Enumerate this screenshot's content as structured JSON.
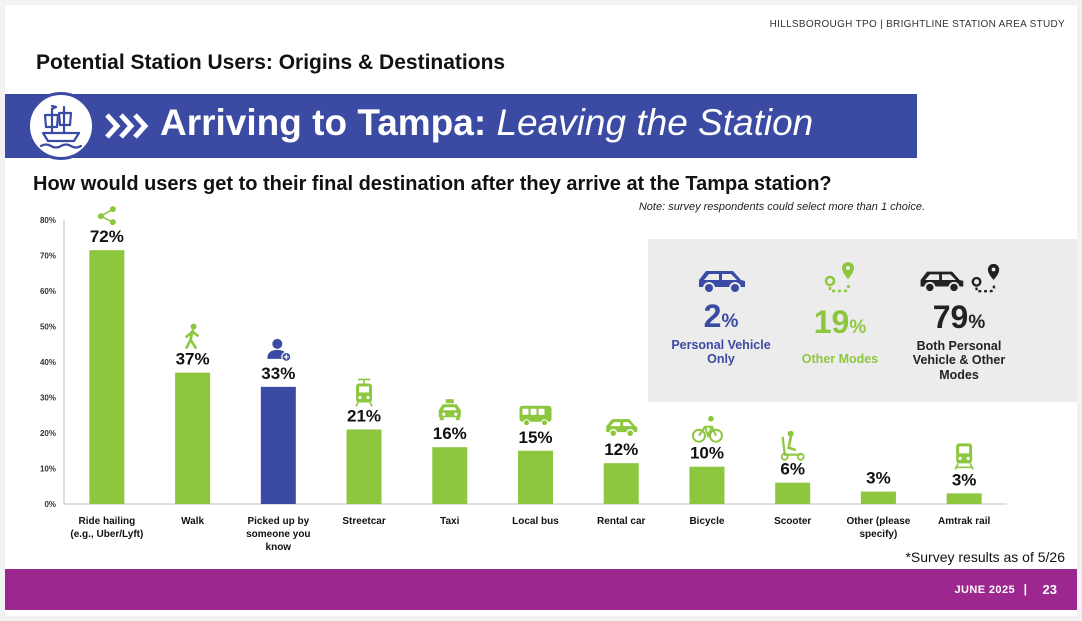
{
  "header": {
    "org": "HILLSBOROUGH TPO | BRIGHTLINE STATION AREA STUDY"
  },
  "subtitle": "Potential Station Users: Origins & Destinations",
  "banner": {
    "title_bold": "Arriving to Tampa:",
    "title_italic": "Leaving the Station"
  },
  "question": "How would users get to their final destination after they arrive at the Tampa station?",
  "note": "Note: survey respondents could select more than 1 choice.",
  "summary": [
    {
      "pct": "2",
      "sign": "%",
      "label": "Personal Vehicle Only",
      "color": "#3b4aa3",
      "icon": "car-icon"
    },
    {
      "pct": "19",
      "sign": "%",
      "label": "Other Modes",
      "color": "#8dc63f",
      "icon": "route-icon"
    },
    {
      "pct": "79",
      "sign": "%",
      "label": "Both Personal Vehicle & Other Modes",
      "color": "#222222",
      "icon": "car-and-route-icon"
    }
  ],
  "chart_data": {
    "type": "bar",
    "title": "How would users get to their final destination after they arrive at the Tampa station?",
    "xlabel": "",
    "ylabel": "",
    "ylim": [
      0,
      80
    ],
    "yticks": [
      "0%",
      "10%",
      "20%",
      "30%",
      "40%",
      "50%",
      "60%",
      "70%",
      "80%"
    ],
    "categories": [
      [
        "Ride hailing",
        "(e.g., Uber/Lyft)"
      ],
      [
        "Walk"
      ],
      [
        "Picked up by",
        "someone you",
        "know"
      ],
      [
        "Streetcar"
      ],
      [
        "Taxi"
      ],
      [
        "Local bus"
      ],
      [
        "Rental car"
      ],
      [
        "Bicycle"
      ],
      [
        "Scooter"
      ],
      [
        "Other (please",
        "specify)"
      ],
      [
        "Amtrak rail"
      ]
    ],
    "values": [
      71.5,
      37,
      33,
      21,
      16,
      15,
      11.5,
      10.5,
      6,
      3.5,
      3
    ],
    "labels": [
      "72%",
      "37%",
      "33%",
      "21%",
      "16%",
      "15%",
      "12%",
      "10%",
      "6%",
      "3%",
      "3%"
    ],
    "icons": [
      "share-icon",
      "walk-icon",
      "person-add-icon",
      "streetcar-icon",
      "taxi-icon",
      "bus-icon",
      "car-icon",
      "bicycle-icon",
      "scooter-icon",
      "",
      "train-icon"
    ],
    "colors": [
      "#8dc63f",
      "#8dc63f",
      "#3b4aa3",
      "#8dc63f",
      "#8dc63f",
      "#8dc63f",
      "#8dc63f",
      "#8dc63f",
      "#8dc63f",
      "#8dc63f",
      "#8dc63f"
    ]
  },
  "footnote": "*Survey results as of 5/26",
  "footer": {
    "date": "JUNE 2025",
    "separator": "|",
    "page": "23"
  }
}
